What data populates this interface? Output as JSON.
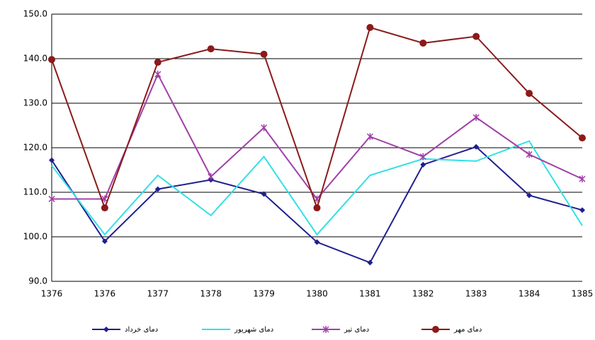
{
  "chart_data": {
    "type": "line",
    "categories": [
      "1376",
      "1376",
      "1377",
      "1378",
      "1379",
      "1380",
      "1381",
      "1382",
      "1383",
      "1384",
      "1385"
    ],
    "series": [
      {
        "name": "دمای خرداد",
        "color": "#1f1f8f",
        "marker": "diamond",
        "values": [
          117.2,
          99,
          110.7,
          112.8,
          109.6,
          98.8,
          94.2,
          116.2,
          120.2,
          109.3,
          106
        ]
      },
      {
        "name": "دمای شهریور",
        "color": "#33e0e6",
        "marker": "none",
        "values": [
          116,
          100.5,
          113.8,
          104.8,
          118,
          100.5,
          113.8,
          117.5,
          117,
          121.5,
          102.5
        ]
      },
      {
        "name": "دمای تیر",
        "color": "#a040a8",
        "marker": "star",
        "values": [
          108.5,
          108.5,
          136.5,
          113.5,
          124.5,
          108.5,
          122.5,
          118,
          126.8,
          118.5,
          113
        ]
      },
      {
        "name": "دمای مهر",
        "color": "#8b1a1a",
        "marker": "circle",
        "values": [
          139.8,
          106.5,
          139.2,
          142.2,
          141,
          106.5,
          147,
          143.5,
          145,
          132.2,
          122.2
        ]
      }
    ],
    "ylim": [
      90,
      150
    ],
    "yticks": [
      {
        "value": 90,
        "label": "90.0"
      },
      {
        "value": 100,
        "label": "100.0"
      },
      {
        "value": 110,
        "label": "110.0"
      },
      {
        "value": 120,
        "label": "120.0"
      },
      {
        "value": 130,
        "label": "130.0"
      },
      {
        "value": 140,
        "label": "140.0"
      },
      {
        "value": 150,
        "label": "150.0"
      }
    ],
    "grid": true
  }
}
